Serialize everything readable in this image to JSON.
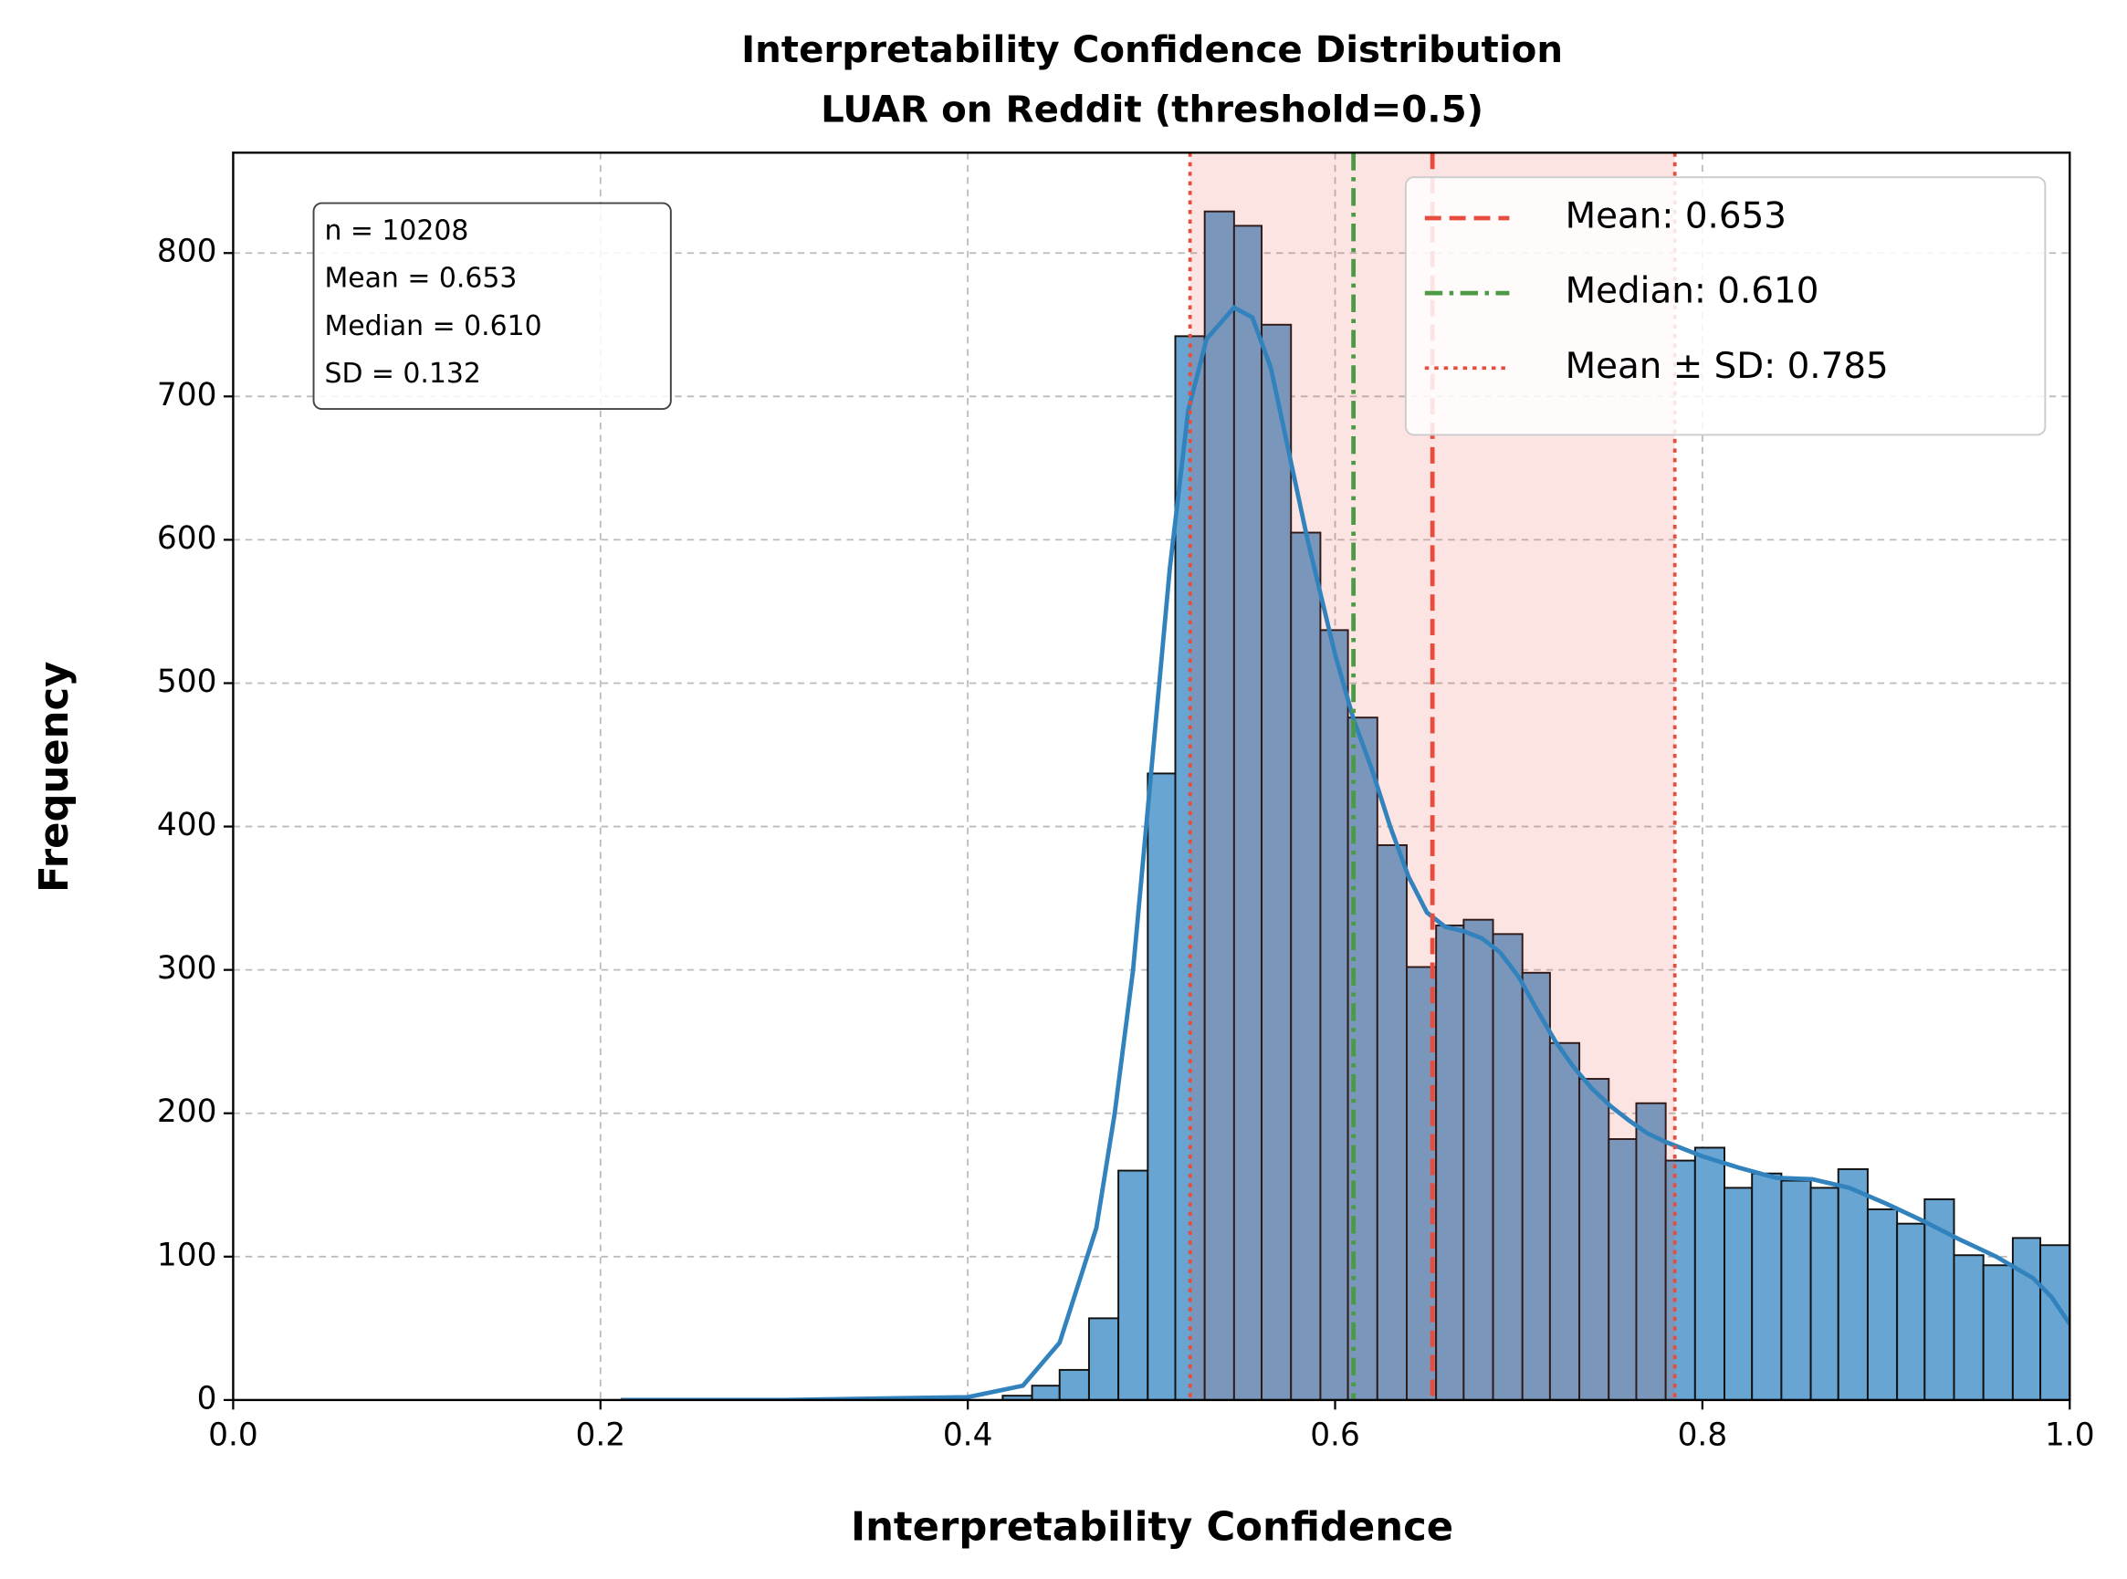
{
  "chart_data": {
    "type": "histogram",
    "title": "Interpretability Confidence Distribution",
    "subtitle": "LUAR on Reddit (threshold=0.5)",
    "xlabel": "Interpretability Confidence",
    "ylabel": "Frequency",
    "bins": [
      0.419,
      0.435,
      0.45,
      0.466,
      0.482,
      0.498,
      0.513,
      0.529,
      0.545,
      0.56,
      0.576,
      0.592,
      0.607,
      0.623,
      0.639,
      0.655,
      0.67,
      0.686,
      0.702,
      0.717,
      0.733,
      0.749,
      0.764,
      0.78,
      0.796,
      0.812,
      0.827,
      0.843,
      0.859,
      0.874,
      0.89,
      0.906,
      0.921,
      0.937,
      0.953,
      0.969,
      0.984,
      1.0
    ],
    "counts": [
      3,
      10,
      21,
      57,
      160,
      437,
      742,
      829,
      819,
      750,
      605,
      537,
      476,
      387,
      302,
      331,
      335,
      325,
      298,
      249,
      224,
      182,
      207,
      167,
      176,
      148,
      158,
      153,
      148,
      161,
      133,
      123,
      140,
      101,
      94,
      113,
      108
    ],
    "color": "#68a5d2",
    "kde": {
      "color": "#3182bd",
      "x": [
        0.211,
        0.3,
        0.4,
        0.43,
        0.45,
        0.47,
        0.48,
        0.49,
        0.5,
        0.51,
        0.52,
        0.53,
        0.545,
        0.555,
        0.565,
        0.575,
        0.585,
        0.6,
        0.61,
        0.62,
        0.63,
        0.64,
        0.65,
        0.66,
        0.67,
        0.68,
        0.69,
        0.7,
        0.71,
        0.72,
        0.73,
        0.74,
        0.75,
        0.76,
        0.77,
        0.78,
        0.79,
        0.8,
        0.82,
        0.84,
        0.86,
        0.88,
        0.9,
        0.92,
        0.94,
        0.96,
        0.98,
        0.99,
        1.0
      ],
      "values": [
        0,
        0,
        2,
        10,
        40,
        120,
        200,
        300,
        440,
        580,
        690,
        740,
        762,
        755,
        720,
        660,
        600,
        520,
        475,
        440,
        400,
        365,
        340,
        330,
        327,
        322,
        312,
        295,
        272,
        250,
        232,
        217,
        205,
        195,
        186,
        180,
        175,
        170,
        162,
        155,
        154,
        148,
        137,
        125,
        112,
        100,
        85,
        72,
        53
      ]
    },
    "band": {
      "from": 0.521,
      "to": 0.785,
      "color": "#e74c3c",
      "alpha": 0.15
    },
    "lines": [
      {
        "name": "Mean: 0.653",
        "value": 0.653,
        "color": "#e74c3c",
        "style": "dashed"
      },
      {
        "name": "Median: 0.610",
        "value": 0.61,
        "color": "#4c9a45",
        "style": "dashdot"
      },
      {
        "name": "Mean ± SD: 0.785",
        "value": 0.785,
        "color": "#e74c3c",
        "style": "dotted"
      },
      {
        "value": 0.521,
        "color": "#e74c3c",
        "style": "dotted"
      }
    ],
    "annotation": [
      "n = 10208",
      "Mean = 0.653",
      "Median = 0.610",
      "SD = 0.132"
    ],
    "legend": "upper right",
    "grid": true,
    "xlim": [
      0,
      1
    ],
    "xticks": [
      {
        "value": 0,
        "label": "0.0"
      },
      0.2,
      0.4,
      0.6,
      0.8,
      {
        "value": 1,
        "label": "1.0"
      }
    ],
    "ylim": [
      0,
      870
    ],
    "yticks": [
      0,
      100,
      200,
      300,
      400,
      500,
      600,
      700,
      800
    ]
  }
}
